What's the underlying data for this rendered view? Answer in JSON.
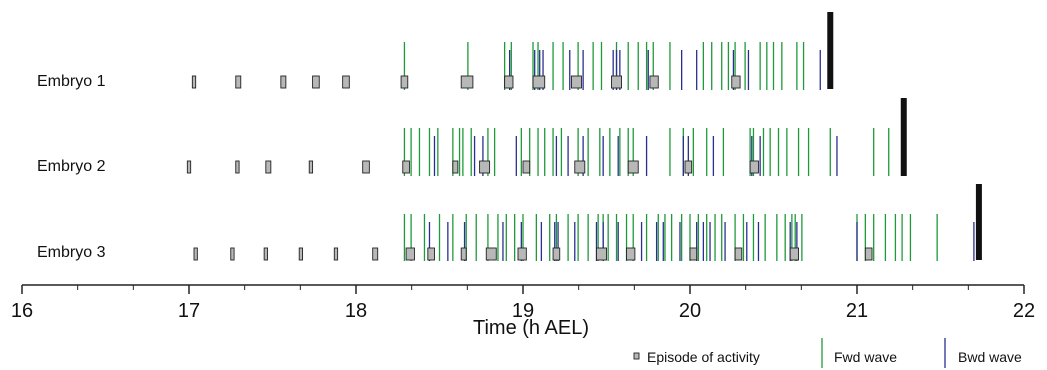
{
  "chart_data": {
    "type": "event-raster",
    "xlabel": "Time (h AEL)",
    "xlim": [
      16,
      22.1
    ],
    "x_ticks": [
      16,
      17,
      18,
      19,
      20,
      21,
      22
    ],
    "grid": false,
    "legend_position": "bottom-right",
    "legend": [
      {
        "key": "episode",
        "label": "Episode of activity"
      },
      {
        "key": "fwd",
        "label": "Fwd wave"
      },
      {
        "key": "bwd",
        "label": "Bwd wave"
      }
    ],
    "colors": {
      "episode_fill": "#b8b8b8",
      "episode_stroke": "#222222",
      "fwd": "#1f9a3a",
      "bwd": "#2a2f8f",
      "end": "#111111",
      "axis": "#222222"
    },
    "rows": [
      {
        "label": "Embryo 1",
        "episodes": [
          [
            17.02,
            17.04
          ],
          [
            17.28,
            17.31
          ],
          [
            17.55,
            17.58
          ],
          [
            17.74,
            17.78
          ],
          [
            17.92,
            17.96
          ],
          [
            18.27,
            18.31
          ],
          [
            18.63,
            18.7
          ],
          [
            18.89,
            18.94
          ],
          [
            19.06,
            19.13
          ],
          [
            19.29,
            19.35
          ],
          [
            19.53,
            19.59
          ],
          [
            19.76,
            19.81
          ],
          [
            20.25,
            20.3
          ]
        ],
        "fwd": [
          18.29,
          18.67,
          18.89,
          18.93,
          19.06,
          19.09,
          19.18,
          19.24,
          19.33,
          19.42,
          19.47,
          19.56,
          19.63,
          19.69,
          19.74,
          19.78,
          19.88,
          20.08,
          20.13,
          20.19,
          20.23,
          20.27,
          20.33,
          20.42,
          20.46,
          20.5,
          20.55,
          20.64,
          20.68
        ],
        "bwd": [
          18.92,
          19.07,
          19.1,
          19.12,
          19.28,
          19.36,
          19.54,
          19.56,
          19.58,
          19.75,
          19.95,
          20.04,
          20.26,
          20.35,
          20.78
        ],
        "end": 20.84
      },
      {
        "label": "Embryo 2",
        "episodes": [
          [
            16.99,
            17.01
          ],
          [
            17.28,
            17.3
          ],
          [
            17.46,
            17.49
          ],
          [
            17.72,
            17.74
          ],
          [
            18.04,
            18.08
          ],
          [
            18.28,
            18.32
          ],
          [
            18.58,
            18.61
          ],
          [
            18.74,
            18.8
          ],
          [
            19.0,
            19.04
          ],
          [
            19.31,
            19.37
          ],
          [
            19.63,
            19.69
          ],
          [
            19.97,
            20.01
          ],
          [
            20.36,
            20.41
          ]
        ],
        "fwd": [
          18.29,
          18.33,
          18.38,
          18.44,
          18.49,
          18.58,
          18.62,
          18.64,
          18.69,
          18.79,
          18.83,
          18.99,
          19.04,
          19.09,
          19.13,
          19.18,
          19.23,
          19.33,
          19.39,
          19.46,
          19.52,
          19.58,
          19.63,
          19.66,
          19.88,
          19.96,
          20.02,
          20.1,
          20.2,
          20.36,
          20.38,
          20.44,
          20.48,
          20.53,
          20.58,
          20.65,
          20.71,
          20.84,
          21.1,
          21.19,
          21.27
        ],
        "bwd": [
          18.47,
          18.71,
          18.76,
          18.96,
          19.2,
          19.27,
          19.36,
          19.48,
          19.57,
          19.74,
          19.96,
          19.99,
          20.14,
          20.37,
          20.42,
          20.88
        ],
        "end": 21.28
      },
      {
        "label": "Embryo 3",
        "episodes": [
          [
            17.03,
            17.05
          ],
          [
            17.25,
            17.27
          ],
          [
            17.45,
            17.47
          ],
          [
            17.66,
            17.68
          ],
          [
            17.87,
            17.89
          ],
          [
            18.1,
            18.13
          ],
          [
            18.3,
            18.35
          ],
          [
            18.43,
            18.47
          ],
          [
            18.63,
            18.66
          ],
          [
            18.78,
            18.84
          ],
          [
            18.97,
            19.02
          ],
          [
            19.18,
            19.22
          ],
          [
            19.44,
            19.5
          ],
          [
            19.62,
            19.67
          ],
          [
            20.0,
            20.04
          ],
          [
            20.27,
            20.31
          ],
          [
            20.6,
            20.65
          ],
          [
            21.05,
            21.09
          ]
        ],
        "fwd": [
          18.29,
          18.33,
          18.41,
          18.5,
          18.58,
          18.66,
          18.72,
          18.79,
          18.85,
          18.9,
          18.95,
          19.0,
          19.08,
          19.16,
          19.2,
          19.27,
          19.33,
          19.39,
          19.45,
          19.48,
          19.51,
          19.56,
          19.62,
          19.66,
          19.74,
          19.81,
          19.85,
          19.89,
          19.95,
          20.0,
          20.05,
          20.1,
          20.15,
          20.19,
          20.27,
          20.32,
          20.38,
          20.45,
          20.52,
          20.57,
          20.61,
          20.63,
          20.67,
          21.0,
          21.05,
          21.1,
          21.17,
          21.23,
          21.27,
          21.32,
          21.48
        ],
        "bwd": [
          18.44,
          18.55,
          18.65,
          18.88,
          18.99,
          19.11,
          19.19,
          19.21,
          19.31,
          19.44,
          19.48,
          19.57,
          19.71,
          19.8,
          19.84,
          19.94,
          20.04,
          20.08,
          20.12,
          20.21,
          20.34,
          20.41,
          20.6,
          20.64,
          21.0,
          21.7
        ],
        "end": 21.73
      }
    ]
  }
}
